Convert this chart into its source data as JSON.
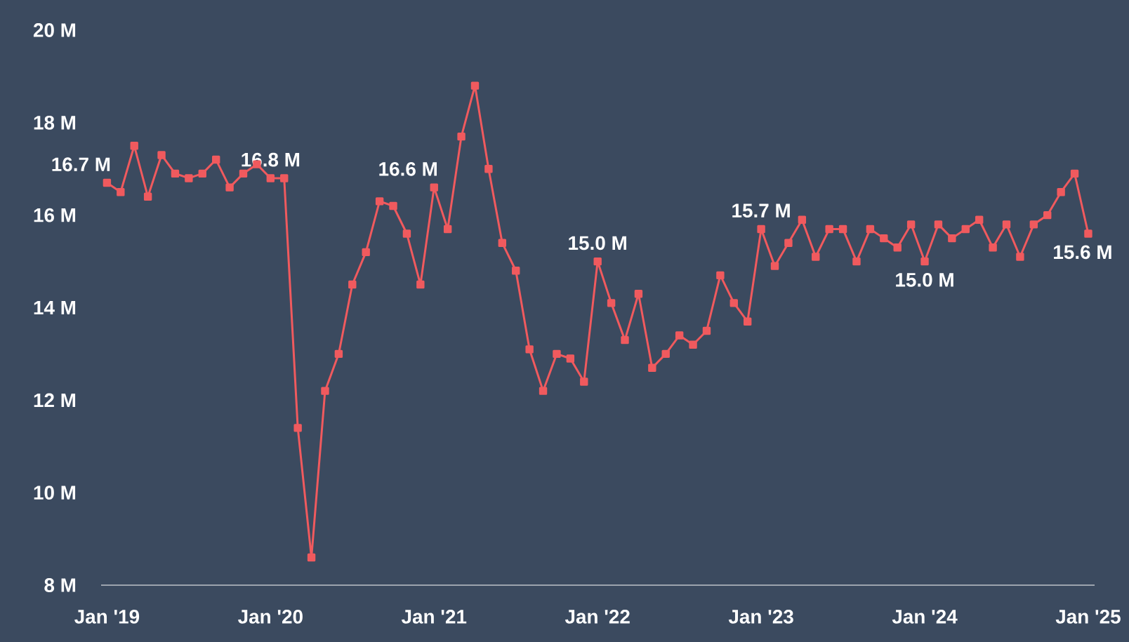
{
  "chart_data": {
    "type": "line",
    "x": [
      "2019-01",
      "2019-02",
      "2019-03",
      "2019-04",
      "2019-05",
      "2019-06",
      "2019-07",
      "2019-08",
      "2019-09",
      "2019-10",
      "2019-11",
      "2019-12",
      "2020-01",
      "2020-02",
      "2020-03",
      "2020-04",
      "2020-05",
      "2020-06",
      "2020-07",
      "2020-08",
      "2020-09",
      "2020-10",
      "2020-11",
      "2020-12",
      "2021-01",
      "2021-02",
      "2021-03",
      "2021-04",
      "2021-05",
      "2021-06",
      "2021-07",
      "2021-08",
      "2021-09",
      "2021-10",
      "2021-11",
      "2021-12",
      "2022-01",
      "2022-02",
      "2022-03",
      "2022-04",
      "2022-05",
      "2022-06",
      "2022-07",
      "2022-08",
      "2022-09",
      "2022-10",
      "2022-11",
      "2022-12",
      "2023-01",
      "2023-02",
      "2023-03",
      "2023-04",
      "2023-05",
      "2023-06",
      "2023-07",
      "2023-08",
      "2023-09",
      "2023-10",
      "2023-11",
      "2023-12",
      "2024-01",
      "2024-02",
      "2024-03",
      "2024-04",
      "2024-05",
      "2024-06",
      "2024-07",
      "2024-08",
      "2024-09",
      "2024-10",
      "2024-11",
      "2024-12",
      "2025-01"
    ],
    "series": [
      {
        "color": "#f05a5e",
        "values": [
          16.7,
          16.5,
          17.5,
          16.4,
          17.3,
          16.9,
          16.8,
          16.9,
          17.2,
          16.6,
          16.9,
          17.1,
          16.8,
          16.8,
          11.4,
          8.6,
          12.2,
          13.0,
          14.5,
          15.2,
          16.3,
          16.2,
          15.6,
          14.5,
          16.6,
          15.7,
          17.7,
          18.8,
          17.0,
          15.4,
          14.8,
          13.1,
          12.2,
          13.0,
          12.9,
          12.4,
          15.0,
          14.1,
          13.3,
          14.3,
          12.7,
          13.0,
          13.4,
          13.2,
          13.5,
          14.7,
          14.1,
          13.7,
          15.7,
          14.9,
          15.4,
          15.9,
          15.1,
          15.7,
          15.7,
          15.0,
          15.7,
          15.5,
          15.3,
          15.8,
          15.0,
          15.8,
          15.5,
          15.7,
          15.9,
          15.3,
          15.8,
          15.1,
          15.8,
          16.0,
          16.5,
          16.9,
          15.6
        ],
        "value_labels": [
          "16.7 M",
          null,
          null,
          null,
          null,
          null,
          null,
          null,
          null,
          null,
          null,
          null,
          "16.8 M",
          null,
          null,
          null,
          null,
          null,
          null,
          null,
          null,
          null,
          null,
          null,
          "16.6 M",
          null,
          null,
          null,
          null,
          null,
          null,
          null,
          null,
          null,
          null,
          null,
          "15.0 M",
          null,
          null,
          null,
          null,
          null,
          null,
          null,
          null,
          null,
          null,
          null,
          "15.7 M",
          null,
          null,
          null,
          null,
          null,
          null,
          null,
          null,
          null,
          null,
          null,
          "15.0 M",
          null,
          null,
          null,
          null,
          null,
          null,
          null,
          null,
          null,
          null,
          null,
          "15.6 M"
        ]
      }
    ],
    "xlim": [
      "2018-12-18",
      "2025-01-15"
    ],
    "xticks": [
      {
        "value": "2019-01",
        "label": "Jan '19"
      },
      {
        "value": "2020-01",
        "label": "Jan '20"
      },
      {
        "value": "2021-01",
        "label": "Jan '21"
      },
      {
        "value": "2022-01",
        "label": "Jan '22"
      },
      {
        "value": "2023-01",
        "label": "Jan '23"
      },
      {
        "value": "2024-01",
        "label": "Jan '24"
      },
      {
        "value": "2025-01",
        "label": "Jan '25"
      }
    ],
    "ylim": [
      8,
      20
    ],
    "yticks": [
      {
        "value": 8,
        "label": "8 M"
      },
      {
        "value": 10,
        "label": "10 M"
      },
      {
        "value": 12,
        "label": "12 M"
      },
      {
        "value": 14,
        "label": "14 M"
      },
      {
        "value": 16,
        "label": "16 M"
      },
      {
        "value": 18,
        "label": "18 M"
      },
      {
        "value": 20,
        "label": "20 M"
      }
    ],
    "grid": false,
    "marker": "square",
    "line_style": "solid"
  }
}
